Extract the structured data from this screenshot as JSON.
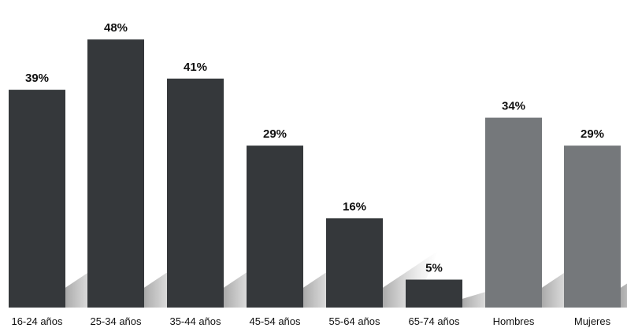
{
  "chart_data": {
    "type": "bar",
    "categories": [
      "16-24 años",
      "25-34 años",
      "35-44 años",
      "45-54 años",
      "55-64 años",
      "65-74 años",
      "Hombres",
      "Mujeres"
    ],
    "values": [
      39,
      48,
      41,
      29,
      16,
      5,
      34,
      29
    ],
    "value_labels": [
      "39%",
      "48%",
      "41%",
      "29%",
      "16%",
      "5%",
      "34%",
      "29%"
    ],
    "groups": [
      "age",
      "age",
      "age",
      "age",
      "age",
      "age",
      "sex",
      "sex"
    ],
    "colors": {
      "age": "#35383b",
      "sex": "#75787b"
    },
    "ylim": [
      0,
      50
    ],
    "grid": false,
    "legend": "none"
  }
}
